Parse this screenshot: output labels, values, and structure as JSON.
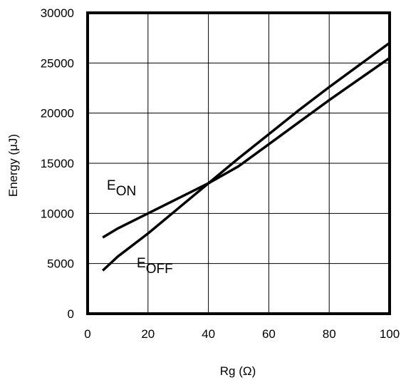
{
  "chart_data": {
    "type": "line",
    "title": "",
    "xlabel": "Rg (Ω)",
    "ylabel": "Energy (μJ)",
    "xlim": [
      0,
      100
    ],
    "ylim": [
      0,
      30000
    ],
    "x_ticks": [
      "0",
      "20",
      "40",
      "60",
      "80",
      "100"
    ],
    "y_ticks": [
      "0",
      "5000",
      "10000",
      "15000",
      "20000",
      "25000",
      "30000"
    ],
    "grid": true,
    "series": [
      {
        "name_main": "E",
        "name_sub": "ON",
        "points": [
          [
            5,
            7600
          ],
          [
            10,
            8500
          ],
          [
            20,
            10000
          ],
          [
            30,
            11500
          ],
          [
            40,
            13000
          ],
          [
            50,
            14700
          ],
          [
            60,
            16900
          ],
          [
            70,
            19100
          ],
          [
            80,
            21300
          ],
          [
            90,
            23400
          ],
          [
            100,
            25500
          ]
        ]
      },
      {
        "name_main": "E",
        "name_sub": "OFF",
        "points": [
          [
            5,
            4300
          ],
          [
            10,
            5700
          ],
          [
            20,
            8000
          ],
          [
            30,
            10500
          ],
          [
            40,
            13000
          ],
          [
            50,
            15500
          ],
          [
            60,
            17900
          ],
          [
            70,
            20300
          ],
          [
            80,
            22600
          ],
          [
            90,
            24800
          ],
          [
            100,
            27000
          ]
        ]
      }
    ]
  }
}
